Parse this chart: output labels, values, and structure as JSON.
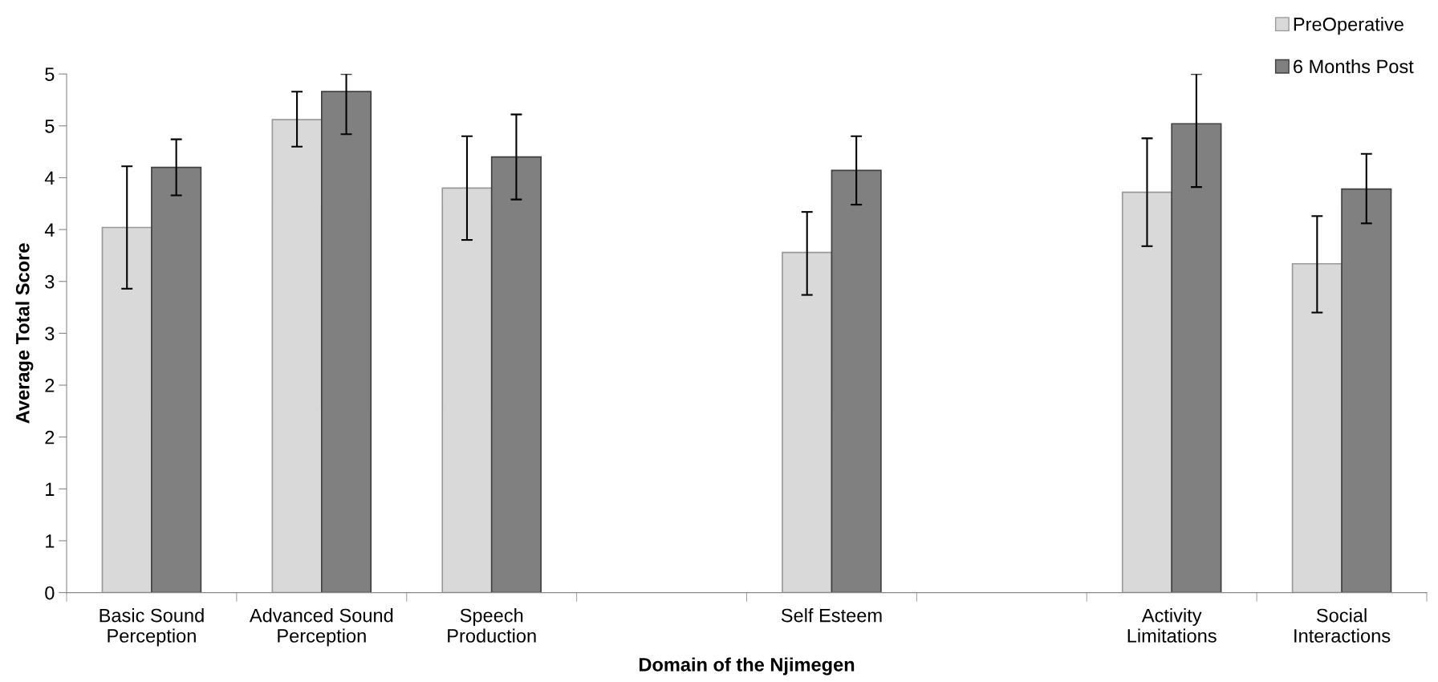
{
  "chart_data": {
    "type": "bar",
    "xlabel": "Domain of the Njimegen",
    "ylabel": "Average Total Score",
    "categories": [
      "Basic Sound\nPerception",
      "Advanced Sound\nPerception",
      "Speech\nProduction",
      null,
      "Self Esteem",
      null,
      "Activity\nLimitations",
      "Social\nInteractions"
    ],
    "series": [
      {
        "name": "PreOperative",
        "color": "#d9d9d9",
        "values": [
          3.52,
          4.56,
          3.9,
          null,
          3.28,
          null,
          3.86,
          3.17
        ],
        "errors": [
          [
            2.93,
            4.11
          ],
          [
            4.3,
            4.83
          ],
          [
            3.4,
            4.4
          ],
          null,
          [
            2.87,
            3.67
          ],
          null,
          [
            3.34,
            4.38
          ],
          [
            2.7,
            3.63
          ]
        ]
      },
      {
        "name": "6 Months Post",
        "color": "#808080",
        "values": [
          4.1,
          4.83,
          4.2,
          null,
          4.07,
          null,
          4.52,
          3.89
        ],
        "errors": [
          [
            3.83,
            4.37
          ],
          [
            4.42,
            5.0
          ],
          [
            3.79,
            4.61
          ],
          null,
          [
            3.74,
            4.4
          ],
          null,
          [
            3.91,
            5.0
          ],
          [
            3.56,
            4.23
          ]
        ]
      }
    ],
    "ylim": [
      0,
      5
    ],
    "yticks": [
      0,
      {
        "value": 0.5,
        "label": "1"
      },
      1,
      {
        "value": 1.5,
        "label": "2"
      },
      2,
      {
        "value": 2.5,
        "label": "3"
      },
      3,
      {
        "value": 3.5,
        "label": "4"
      },
      4,
      {
        "value": 4.5,
        "label": "5"
      },
      5
    ],
    "grid": false,
    "legend": "top right"
  }
}
